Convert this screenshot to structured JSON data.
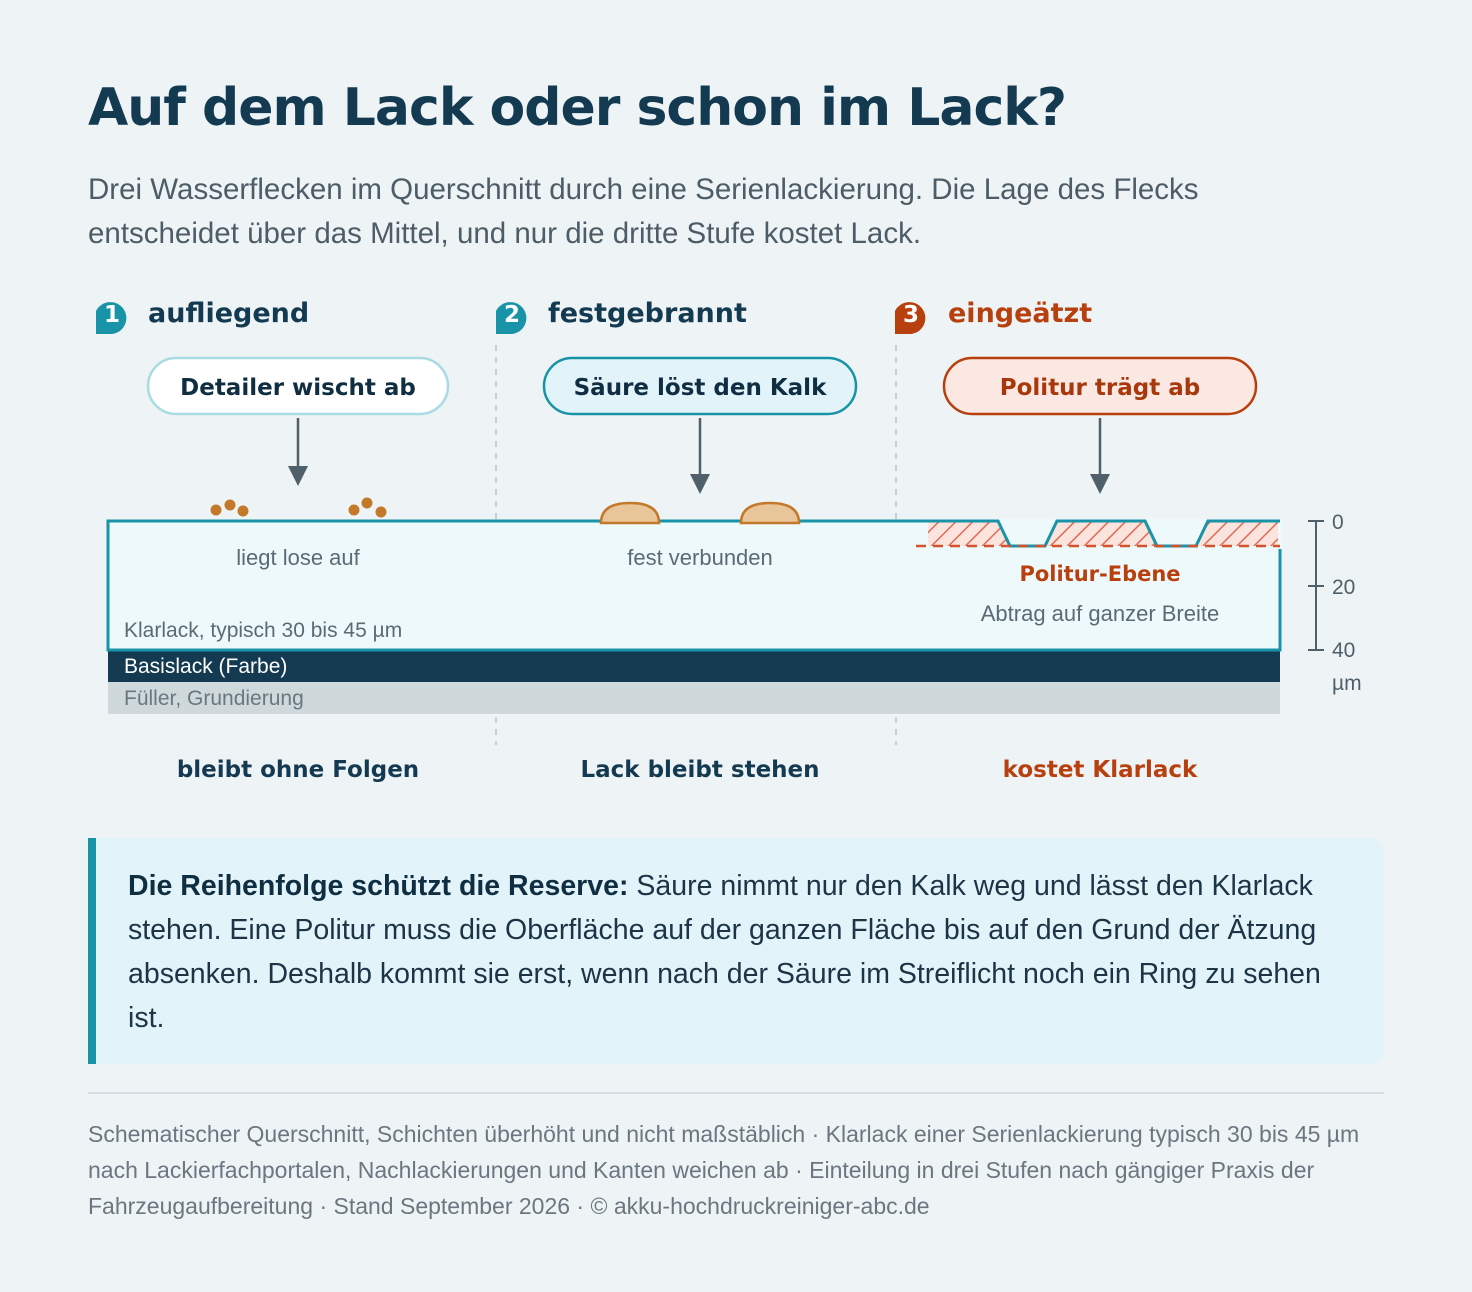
{
  "title": "Auf dem Lack oder schon im Lack?",
  "subtitle": "Drei Wasserflecken im Querschnitt durch eine Serienlackierung. Die Lage des Flecks entscheidet über das Mittel, und nur die dritte Stufe kostet Lack.",
  "stages": [
    {
      "number": "1",
      "heading": "aufliegend",
      "method": "Detailer wischt ab",
      "state": "liegt lose auf",
      "result": "bleibt ohne Folgen",
      "color": "#1993a7"
    },
    {
      "number": "2",
      "heading": "festgebrannt",
      "method": "Säure löst den Kalk",
      "state": "fest verbunden",
      "result": "Lack bleibt stehen",
      "color": "#1993a7"
    },
    {
      "number": "3",
      "heading": "eingeätzt",
      "method": "Politur trägt ab",
      "state": "Politur-Ebene",
      "state_sub": "Abtrag auf ganzer Breite",
      "result": "kostet Klarlack",
      "color": "#b8400f"
    }
  ],
  "layers": {
    "clearcoat": "Klarlack, typisch 30 bis 45 µm",
    "basecoat": "Basislack (Farbe)",
    "primer": "Füller, Grundierung"
  },
  "scale": {
    "ticks": [
      "0",
      "20",
      "40"
    ],
    "unit": "µm"
  },
  "callout": {
    "lead": "Die Reihenfolge schützt die Reserve:",
    "text": " Säure nimmt nur den Kalk weg und lässt den Klarlack stehen. Eine Politur muss die Oberfläche auf der ganzen Fläche bis auf den Grund der Ätzung absenken. Deshalb kommt sie erst, wenn nach der Säure im Streiflicht noch ein Ring zu sehen ist."
  },
  "footnote": "Schematischer Querschnitt, Schichten überhöht und nicht maßstäblich · Klarlack einer Serienlackierung typisch 30 bis 45 µm nach Lackierfachportalen, Nachlackierungen und Kanten weichen ab · Einteilung in drei Stufen nach gängiger Praxis der Fahrzeugaufbereitung · Stand September 2026 · © akku-hochdruckreiniger-abc.de",
  "colors": {
    "navy": "#143a52",
    "teal": "#1993a7",
    "rust": "#b8400f",
    "drop": "#c4782a",
    "clear": "#eef9fb"
  }
}
